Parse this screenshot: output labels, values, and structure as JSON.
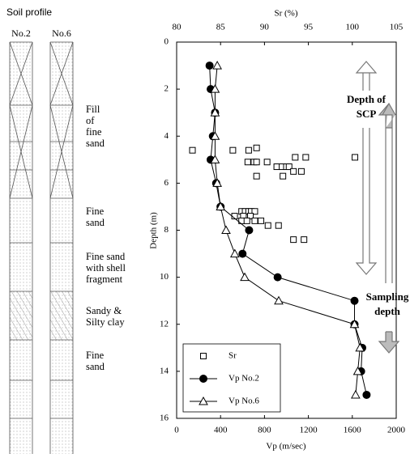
{
  "soil_profile": {
    "title": "Soil profile",
    "columns": [
      "No.2",
      "No.6"
    ],
    "layers": [
      [
        "Fill",
        "of",
        "fine",
        "sand"
      ],
      [
        "Fine",
        "sand"
      ],
      [
        "Fine sand",
        "with shell",
        "fragment"
      ],
      [
        "Sandy &",
        "Silty clay"
      ],
      [
        "Fine",
        "sand"
      ]
    ]
  },
  "chart_data": {
    "type": "line",
    "x_label": "Vp  (m/sec)",
    "x2_label": "Sr (%)",
    "y_label": "Depth (m)",
    "xlim": [
      0,
      2000
    ],
    "xticks": [
      0,
      400,
      800,
      1200,
      1600,
      2000
    ],
    "x2lim": [
      80,
      105
    ],
    "x2ticks": [
      80,
      85,
      90,
      95,
      100,
      105
    ],
    "ylim": [
      16,
      0
    ],
    "yticks": [
      0,
      2,
      4,
      6,
      8,
      10,
      12,
      14,
      16
    ],
    "series": [
      {
        "name": "Sr",
        "axis": "x2",
        "marker": "square",
        "line": false,
        "color": "#000000",
        "x": [
          89.1,
          81.8,
          86.4,
          88.2,
          93.5,
          94.7,
          100.3,
          88.1,
          88.8,
          89.1,
          90.3,
          91.4,
          92.0,
          92.5,
          92.8,
          93.3,
          94.2,
          89.1,
          92.1,
          87.4,
          87.8,
          88.2,
          88.5,
          88.9,
          86.6,
          87.6,
          88.4,
          87.4,
          88.0,
          88.9,
          89.6,
          90.4,
          91.6,
          93.3,
          94.5
        ],
        "y": [
          4.5,
          4.6,
          4.6,
          4.6,
          4.9,
          4.9,
          4.9,
          5.1,
          5.1,
          5.1,
          5.1,
          5.3,
          5.3,
          5.3,
          5.3,
          5.5,
          5.5,
          5.7,
          5.7,
          7.2,
          7.2,
          7.2,
          7.2,
          7.2,
          7.4,
          7.4,
          7.4,
          7.6,
          7.6,
          7.6,
          7.6,
          7.8,
          7.8,
          8.4,
          8.4
        ]
      },
      {
        "name": "Vp No.2",
        "marker": "circle",
        "line": true,
        "color": "#000000",
        "x": [
          300,
          310,
          350,
          330,
          310,
          360,
          400,
          660,
          600,
          920,
          1620,
          1620,
          1690,
          1680,
          1730
        ],
        "y": [
          1,
          2,
          3,
          4,
          5,
          6,
          7,
          8,
          9,
          10,
          11,
          12,
          13,
          14,
          15
        ]
      },
      {
        "name": "Vp No.6",
        "marker": "triangle",
        "line": true,
        "color": "#000000",
        "x": [
          370,
          350,
          350,
          350,
          350,
          370,
          400,
          450,
          530,
          620,
          930,
          1620,
          1670,
          1650,
          1630
        ],
        "y": [
          1,
          2,
          3,
          4,
          5,
          6,
          7,
          8,
          9,
          10,
          11,
          12,
          13,
          14,
          15
        ]
      }
    ],
    "annotations": [
      [
        "Depth of",
        "SCP"
      ],
      [
        "Sampling",
        "depth"
      ]
    ]
  }
}
